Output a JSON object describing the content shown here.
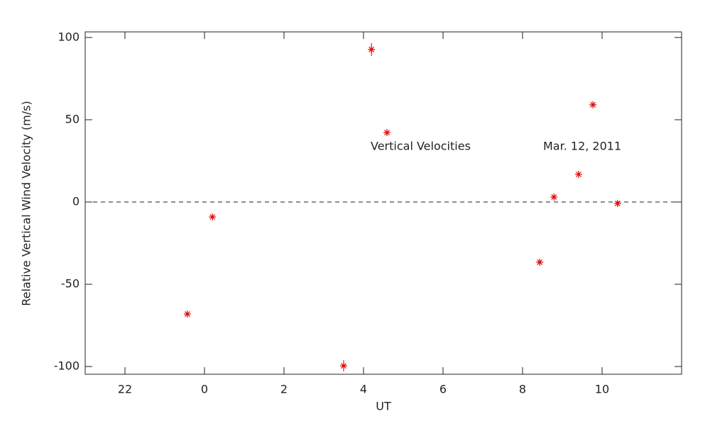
{
  "chart_data": {
    "type": "scatter",
    "x_label": "UT",
    "y_label": "Relative Vertical Wind Velocity (m/s)",
    "annotations": [
      "Vertical Velocities",
      "Mar. 12, 2011"
    ],
    "x": [
      -0.43,
      0.2,
      3.5,
      4.2,
      4.59,
      8.43,
      8.79,
      9.41,
      9.77,
      10.39
    ],
    "series": [
      {
        "name": "Vertical Velocities",
        "color": "#e00000",
        "values": [
          -68.1,
          -9.1,
          -99.6,
          92.7,
          42.2,
          -36.6,
          3.0,
          16.8,
          59.1,
          -0.9
        ],
        "errors": [
          1,
          1,
          3.5,
          4,
          1,
          1,
          1,
          1,
          1,
          1
        ]
      }
    ],
    "reference_line": 0,
    "xlim": [
      -3,
      12
    ],
    "xticks": [
      {
        "value": -2,
        "label": "22"
      },
      0,
      2,
      4,
      6,
      8,
      10
    ],
    "ylim": [
      -104.7,
      103.4
    ],
    "yticks": [
      -100,
      -50,
      0,
      50,
      100
    ]
  }
}
